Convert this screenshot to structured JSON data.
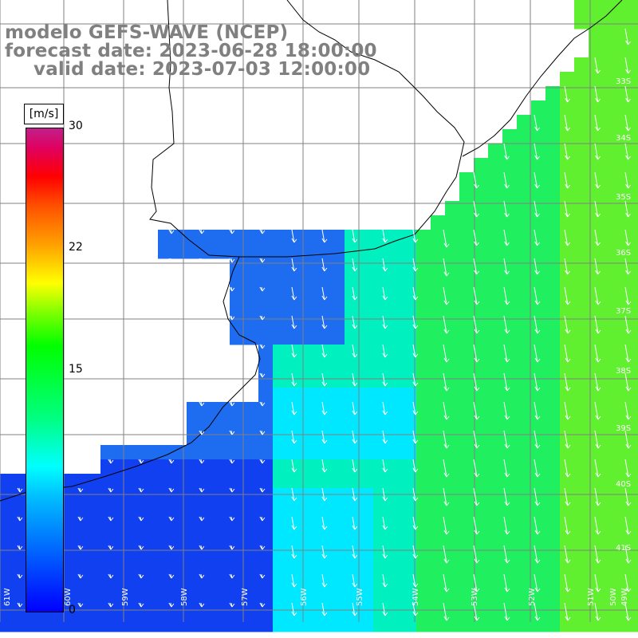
{
  "title": {
    "line1": "modelo GEFS-WAVE (NCEP)",
    "line2": "forecast date: 2023-06-28 18:00:00",
    "line3": "valid date: 2023-07-03 12:00:00"
  },
  "colorbar": {
    "unit": "[m/s]",
    "ticks": [
      "30",
      "22",
      "15",
      "0"
    ],
    "min": 0,
    "max": 30,
    "colors": [
      "#0000ff",
      "#00c0ff",
      "#00ffff",
      "#00ff00",
      "#ffff00",
      "#ff0000",
      "#c0208a"
    ]
  },
  "map": {
    "lon_labels": [
      "61W",
      "60W",
      "59W",
      "58W",
      "57W",
      "56W",
      "55W",
      "54W",
      "53W",
      "52W",
      "51W",
      "50W",
      "49W"
    ],
    "lat_labels": [
      "33S",
      "34S",
      "35S",
      "36S",
      "37S",
      "38S",
      "39S",
      "40S",
      "41S"
    ],
    "field_colors": {
      "deep": "#1040f0",
      "blue": "#1e6cf0",
      "cyan": "#00e8ff",
      "teal": "#00f0c0",
      "green": "#20f060",
      "lime": "#60f030"
    }
  }
}
